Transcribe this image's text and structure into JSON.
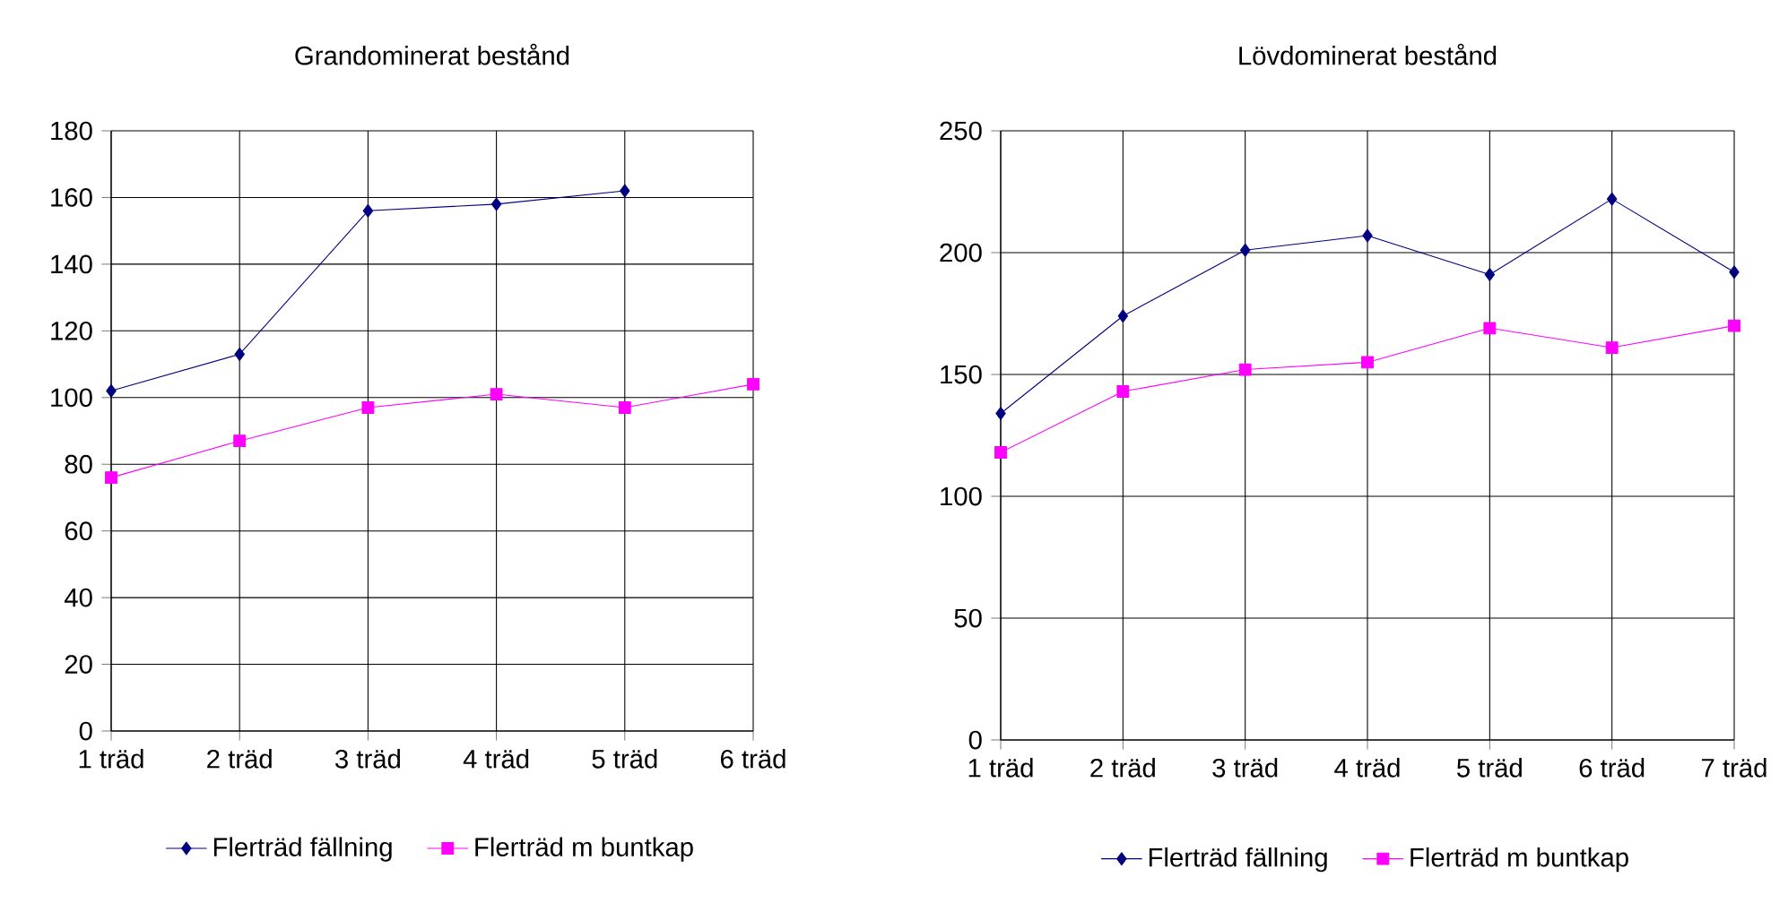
{
  "chart_data": [
    {
      "type": "line",
      "title": "Grandominerat bestånd",
      "categories": [
        "1 träd",
        "2 träd",
        "3 träd",
        "4 träd",
        "5 träd",
        "6 träd"
      ],
      "series": [
        {
          "name": "Flerträd fällning",
          "color": "#000080",
          "marker": "diamond",
          "values": [
            102,
            113,
            156,
            158,
            162,
            null
          ]
        },
        {
          "name": "Flerträd m buntkap",
          "color": "#ff00ff",
          "marker": "square",
          "values": [
            76,
            87,
            97,
            101,
            97,
            104
          ]
        }
      ],
      "ylim": [
        0,
        180
      ],
      "yticks": [
        0,
        20,
        40,
        60,
        80,
        100,
        120,
        140,
        160,
        180
      ],
      "grid": true,
      "legend": "bottom",
      "line_style": "solid"
    },
    {
      "type": "line",
      "title": "Lövdominerat bestånd",
      "categories": [
        "1 träd",
        "2 träd",
        "3 träd",
        "4 träd",
        "5 träd",
        "6 träd",
        "7 träd"
      ],
      "series": [
        {
          "name": "Flerträd fällning",
          "color": "#000080",
          "marker": "diamond",
          "values": [
            134,
            174,
            201,
            207,
            191,
            222,
            192
          ]
        },
        {
          "name": "Flerträd m buntkap",
          "color": "#ff00ff",
          "marker": "square",
          "values": [
            118,
            143,
            152,
            155,
            169,
            161,
            170
          ]
        }
      ],
      "ylim": [
        0,
        250
      ],
      "yticks": [
        0,
        50,
        100,
        150,
        200,
        250
      ],
      "grid": true,
      "legend": "bottom",
      "line_style": "solid"
    }
  ]
}
